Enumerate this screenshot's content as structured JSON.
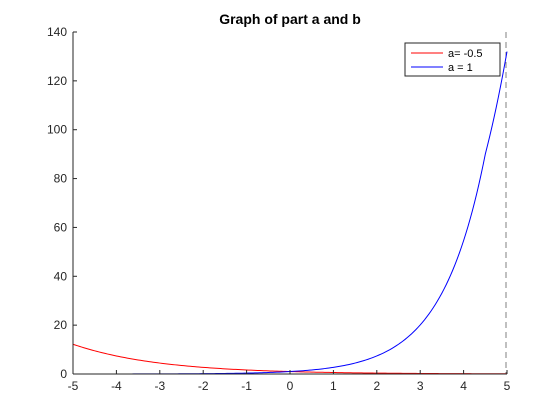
{
  "chart_data": {
    "type": "line",
    "title": "Graph of part a and b",
    "xlabel": "",
    "ylabel": "",
    "xlim": [
      -5,
      5
    ],
    "ylim": [
      0,
      140
    ],
    "xticks": [
      "-5",
      "-4",
      "-3",
      "-2",
      "-1",
      "0",
      "1",
      "2",
      "3",
      "4",
      "5"
    ],
    "yticks": [
      "0",
      "20",
      "40",
      "60",
      "80",
      "100",
      "120",
      "140"
    ],
    "grid": false,
    "legend_position": "top-right",
    "vertical_reference_line": {
      "x": 5,
      "style": "dashed",
      "color": "#808080"
    },
    "x": [
      -5,
      -4.5,
      -4,
      -3.5,
      -3,
      -2.5,
      -2,
      -1.5,
      -1,
      -0.5,
      0,
      0.5,
      1,
      1.5,
      2,
      2.5,
      3,
      3.5,
      4,
      4.5,
      5
    ],
    "series": [
      {
        "name": "a= -0.5",
        "color": "#ff0000",
        "values": [
          12.18,
          9.49,
          7.39,
          5.75,
          4.48,
          3.49,
          2.72,
          2.12,
          1.65,
          1.28,
          1.0,
          0.78,
          0.61,
          0.47,
          0.37,
          0.29,
          0.22,
          0.17,
          0.14,
          0.11,
          0.08
        ]
      },
      {
        "name": "a = 1",
        "color": "#0000ff",
        "values": [
          0.01,
          0.01,
          0.02,
          0.03,
          0.05,
          0.08,
          0.14,
          0.22,
          0.37,
          0.61,
          1.0,
          1.65,
          2.72,
          4.48,
          7.39,
          12.18,
          20.09,
          33.12,
          54.6,
          90.02,
          132.0
        ]
      }
    ]
  }
}
